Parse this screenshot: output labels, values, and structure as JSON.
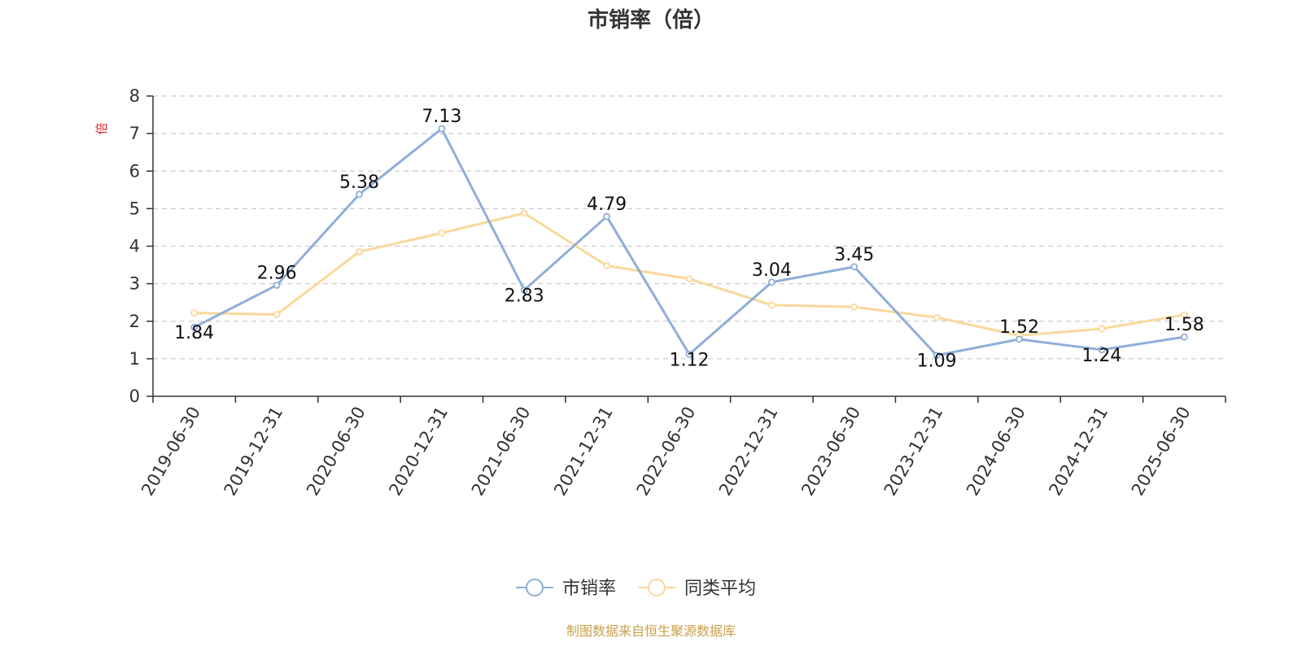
{
  "chart_data": {
    "type": "line",
    "title": "市销率（倍）",
    "ylabel": "倍",
    "xlabel": "",
    "ylim": [
      0,
      8
    ],
    "yticks": [
      0,
      1,
      2,
      3,
      4,
      5,
      6,
      7,
      8
    ],
    "grid": true,
    "legend_position": "bottom-center",
    "categories": [
      "2019-06-30",
      "2019-12-31",
      "2020-06-30",
      "2020-12-31",
      "2021-06-30",
      "2021-12-31",
      "2022-06-30",
      "2022-12-31",
      "2023-06-30",
      "2023-12-31",
      "2024-06-30",
      "2024-12-31",
      "2025-06-30"
    ],
    "series": [
      {
        "name": "市销率",
        "color": "#8faed8",
        "values": [
          1.84,
          2.96,
          5.38,
          7.13,
          2.83,
          4.79,
          1.12,
          3.04,
          3.45,
          1.09,
          1.52,
          1.24,
          1.58
        ],
        "labels": [
          "1.84",
          "2.96",
          "5.38",
          "7.13",
          "2.83",
          "4.79",
          "1.12",
          "3.04",
          "3.45",
          "1.09",
          "1.52",
          "1.24",
          "1.58"
        ]
      },
      {
        "name": "同类平均",
        "color": "#f9d99b",
        "values": [
          2.22,
          2.18,
          3.85,
          4.35,
          4.88,
          3.48,
          3.13,
          2.43,
          2.38,
          2.1,
          1.62,
          1.8,
          2.17
        ]
      }
    ],
    "source": "制图数据来自恒生聚源数据库"
  },
  "colors": {
    "axis": "#333333",
    "grid": "#cccccc",
    "ylabel": "#e02020",
    "source": "#c8a04a"
  }
}
